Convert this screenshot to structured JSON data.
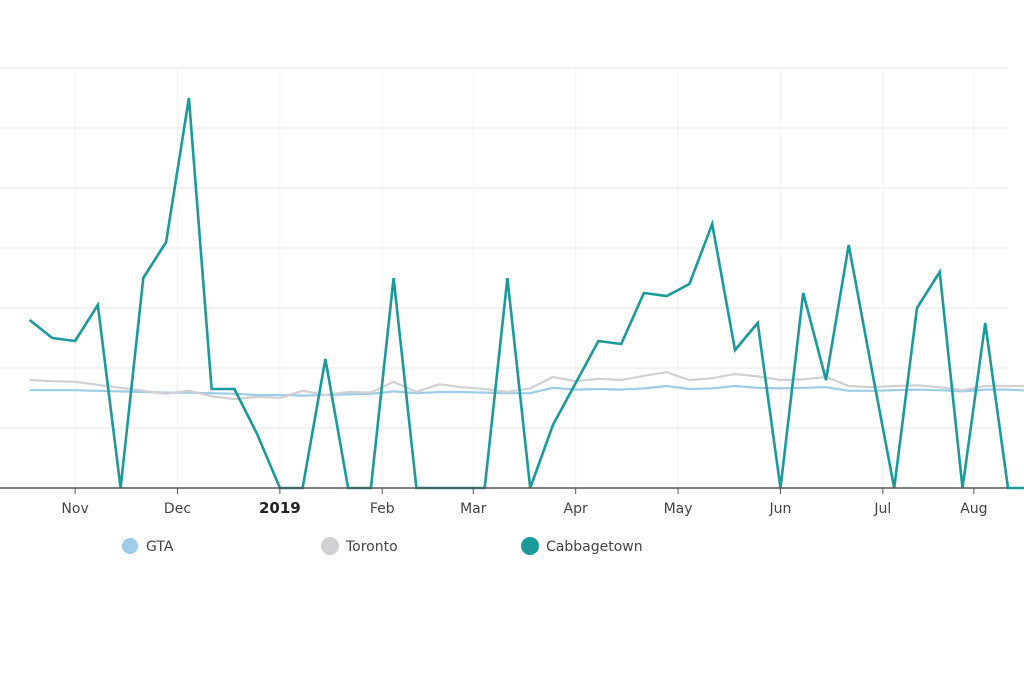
{
  "chart_data": {
    "type": "line",
    "title": "",
    "xlabel": "",
    "ylabel": "",
    "x_axis": {
      "ticks": [
        {
          "label": "Nov",
          "x": 2,
          "bold": false
        },
        {
          "label": "Dec",
          "x": 6.5,
          "bold": false
        },
        {
          "label": "2019",
          "x": 11,
          "bold": true
        },
        {
          "label": "Feb",
          "x": 15.5,
          "bold": false
        },
        {
          "label": "Mar",
          "x": 19.5,
          "bold": false
        },
        {
          "label": "Apr",
          "x": 24,
          "bold": false
        },
        {
          "label": "May",
          "x": 28.5,
          "bold": false
        },
        {
          "label": "Jun",
          "x": 33,
          "bold": false
        },
        {
          "label": "Jul",
          "x": 37.5,
          "bold": false
        },
        {
          "label": "Aug",
          "x": 41.5,
          "bold": false
        }
      ],
      "range": [
        -1.3,
        43
      ]
    },
    "y_axis": {
      "range": [
        0,
        7
      ],
      "gridlines": [
        0,
        1,
        2,
        3,
        4,
        5,
        6,
        7
      ]
    },
    "grid": true,
    "legend_position": "bottom",
    "series": [
      {
        "name": "GTA",
        "color": "#9ccde8",
        "marker": "circle-small",
        "values": [
          1.63,
          1.63,
          1.63,
          1.62,
          1.61,
          1.6,
          1.59,
          1.59,
          1.58,
          1.57,
          1.55,
          1.55,
          1.54,
          1.55,
          1.56,
          1.57,
          1.61,
          1.58,
          1.6,
          1.6,
          1.59,
          1.58,
          1.58,
          1.67,
          1.64,
          1.65,
          1.64,
          1.66,
          1.7,
          1.65,
          1.66,
          1.7,
          1.67,
          1.66,
          1.67,
          1.68,
          1.62,
          1.62,
          1.63,
          1.64,
          1.63,
          1.61,
          1.64,
          1.64,
          1.62
        ]
      },
      {
        "name": "Toronto",
        "color": "#d0d0d4",
        "marker": "circle-large",
        "values": [
          1.8,
          1.78,
          1.77,
          1.72,
          1.67,
          1.62,
          1.57,
          1.62,
          1.53,
          1.48,
          1.52,
          1.5,
          1.62,
          1.55,
          1.6,
          1.59,
          1.77,
          1.6,
          1.73,
          1.68,
          1.65,
          1.6,
          1.66,
          1.85,
          1.78,
          1.82,
          1.8,
          1.87,
          1.93,
          1.8,
          1.83,
          1.9,
          1.86,
          1.8,
          1.81,
          1.85,
          1.7,
          1.68,
          1.7,
          1.71,
          1.68,
          1.63,
          1.7,
          1.7,
          1.7
        ]
      },
      {
        "name": "Cabbagetown",
        "color": "#1a9a9a",
        "marker": "circle-large",
        "values": [
          2.8,
          2.5,
          2.45,
          3.05,
          0.0,
          3.5,
          4.1,
          6.5,
          1.65,
          1.65,
          0.9,
          0.0,
          0.0,
          2.15,
          0.0,
          0.0,
          3.5,
          0.0,
          0.0,
          0.0,
          0.0,
          3.5,
          0.0,
          1.05,
          1.75,
          2.45,
          2.4,
          3.25,
          3.2,
          3.4,
          4.4,
          2.3,
          2.75,
          0.0,
          3.25,
          1.8,
          4.05,
          2.0,
          0.0,
          3.0,
          3.6,
          0.0,
          2.75,
          0.0,
          0.0
        ]
      }
    ]
  }
}
